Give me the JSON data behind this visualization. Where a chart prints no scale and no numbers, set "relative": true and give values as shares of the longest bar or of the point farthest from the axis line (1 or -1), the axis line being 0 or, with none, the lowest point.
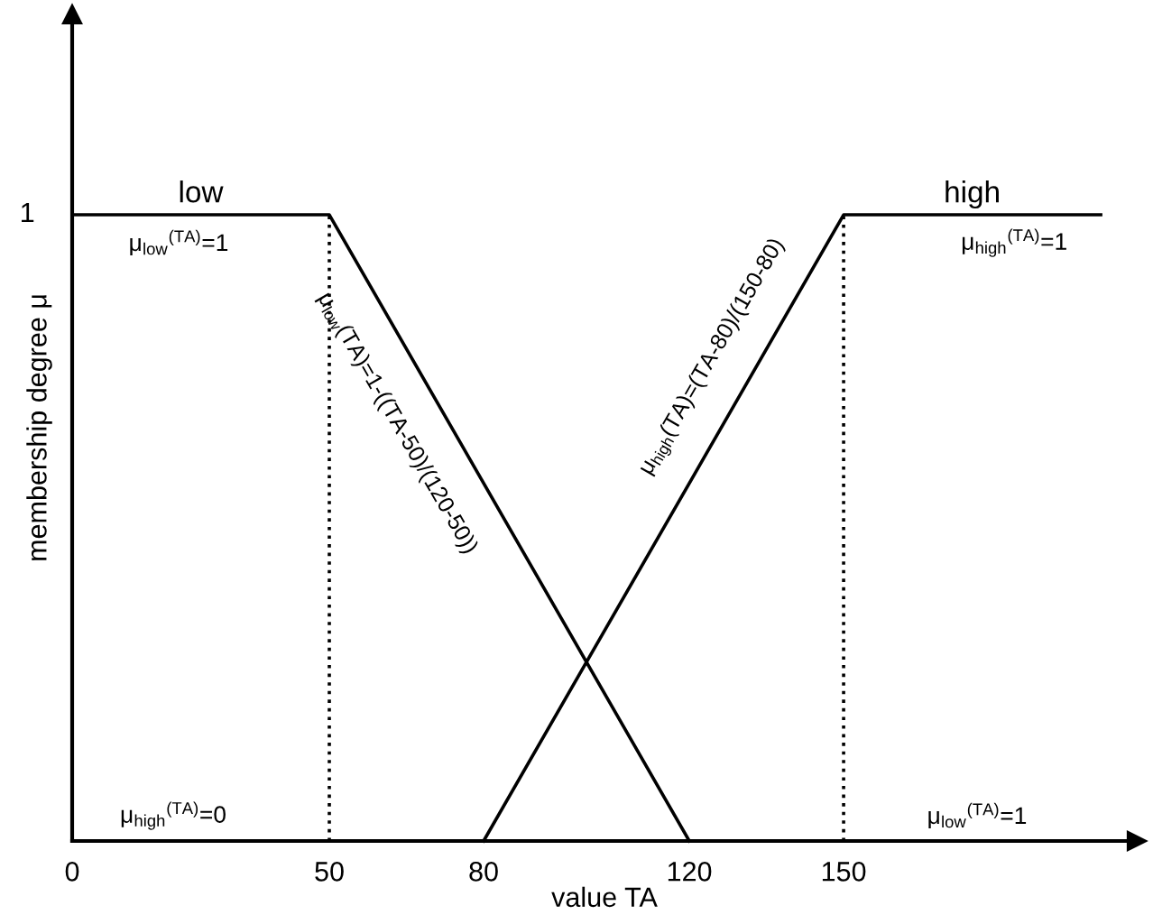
{
  "chart_data": {
    "type": "line",
    "xlabel": "value TA",
    "ylabel": "membership degree μ",
    "xlim": [
      0,
      207
    ],
    "xticks": [
      0,
      50,
      80,
      120,
      150
    ],
    "relative": true,
    "series": [
      {
        "name": "low",
        "color": "#000000",
        "x": [
          0,
          50,
          120
        ],
        "values": [
          1,
          1,
          0
        ]
      },
      {
        "name": "high",
        "color": "#000000",
        "x": [
          80,
          150,
          200
        ],
        "values": [
          0,
          1,
          1
        ]
      }
    ],
    "ref_lines": [
      {
        "axis": "x",
        "value": 50,
        "color": "#000000",
        "line_style": "dotted"
      },
      {
        "axis": "x",
        "value": 150,
        "color": "#000000",
        "line_style": "dotted"
      }
    ],
    "annotations": [
      "1",
      "μ$_{low}$$^{(TA)}$=1",
      "μ$_{high}$$^{(TA)}$=1",
      "μ$_{high}$$^{(TA)}$=0",
      "μ$_{low}$$^{(TA)}$=1",
      "μ$_{low}$(TA)=1-((TA-50)/(120-50))",
      "μ$_{high}$(TA)=(TA-80)/(150-80)"
    ],
    "grid": false,
    "legend": false,
    "marker": "none",
    "line_style": "solid"
  }
}
